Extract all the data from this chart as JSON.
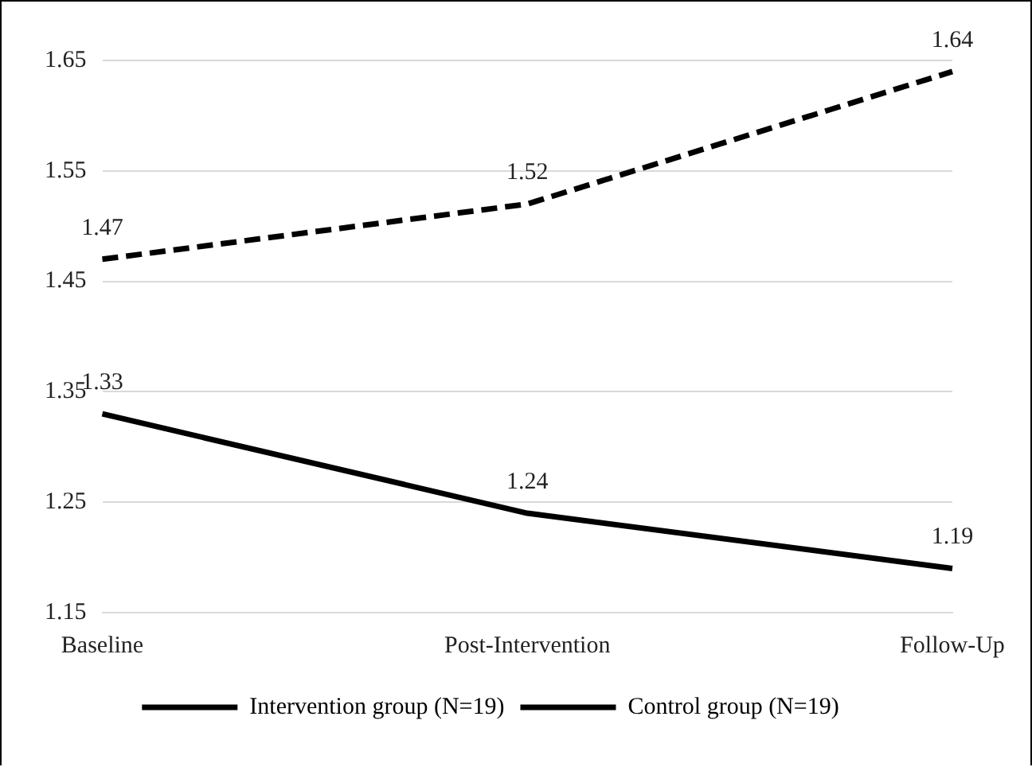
{
  "chart_data": {
    "type": "line",
    "categories": [
      "Baseline",
      "Post-Intervention",
      "Follow-Up"
    ],
    "series": [
      {
        "name": "Intervention group (N=19)",
        "color": "#000000",
        "values": [
          1.33,
          1.24,
          1.19
        ],
        "line_style": "solid"
      },
      {
        "name": "Control group (N=19)",
        "color": "#000000",
        "values": [
          1.47,
          1.52,
          1.64
        ],
        "line_style": "dashed"
      }
    ],
    "ylim": [
      1.15,
      1.65
    ],
    "yticks": [
      1.15,
      1.25,
      1.35,
      1.45,
      1.55,
      1.65
    ],
    "grid": "y",
    "legend": "bottom",
    "data_labels": true,
    "marker": "none"
  }
}
